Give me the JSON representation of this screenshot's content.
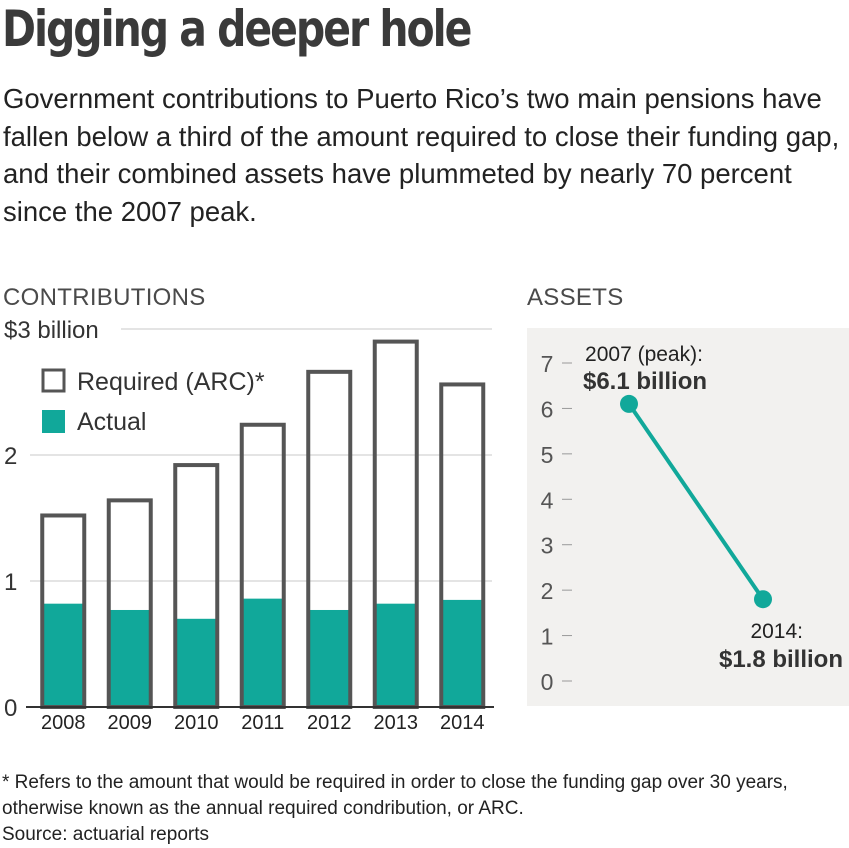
{
  "title": "Digging a deeper hole",
  "subtitle": "Government contributions to Puerto Rico’s two main pensions have fallen below a third of the amount required to close their funding gap, and their combined assets have plummeted by nearly 70 percent since the 2007 peak.",
  "colors": {
    "actual": "#11a89a",
    "required_stroke": "#555555",
    "line": "#11a89a",
    "assets_bg": "#f2f1ef",
    "grid": "#c8c8c8"
  },
  "chart_data": [
    {
      "type": "bar",
      "title": "CONTRIBUTIONS",
      "categories": [
        "2008",
        "2009",
        "2010",
        "2011",
        "2012",
        "2013",
        "2014"
      ],
      "series": [
        {
          "name": "Required (ARC)*",
          "values": [
            1.52,
            1.64,
            1.92,
            2.24,
            2.66,
            2.9,
            2.56
          ]
        },
        {
          "name": "Actual",
          "values": [
            0.82,
            0.77,
            0.7,
            0.86,
            0.77,
            0.82,
            0.85
          ]
        }
      ],
      "ylim": [
        0,
        3
      ],
      "yticks": [
        {
          "value": 0,
          "label": "0"
        },
        {
          "value": 1,
          "label": "1"
        },
        {
          "value": 2,
          "label": "2"
        },
        {
          "value": 3,
          "label": "$3 billion"
        }
      ],
      "grid": true,
      "legend": "top-left"
    },
    {
      "type": "line",
      "title": "ASSETS",
      "x": [
        2007,
        2014
      ],
      "y": [
        6.1,
        1.8
      ],
      "ylim": [
        0,
        7
      ],
      "yticks": [
        "0",
        "1",
        "2",
        "3",
        "4",
        "5",
        "6",
        "7"
      ],
      "annotations": [
        {
          "line1": "2007 (peak):",
          "line2": "$6.1 billion"
        },
        {
          "line1": "2014:",
          "line2": "$1.8 billion"
        }
      ]
    }
  ],
  "footnote": {
    "line1": "* Refers to the amount that would be required in order to close the funding gap over 30 years, otherwise known as the annual required condribution, or ARC.",
    "source": "Source: actuarial reports"
  }
}
